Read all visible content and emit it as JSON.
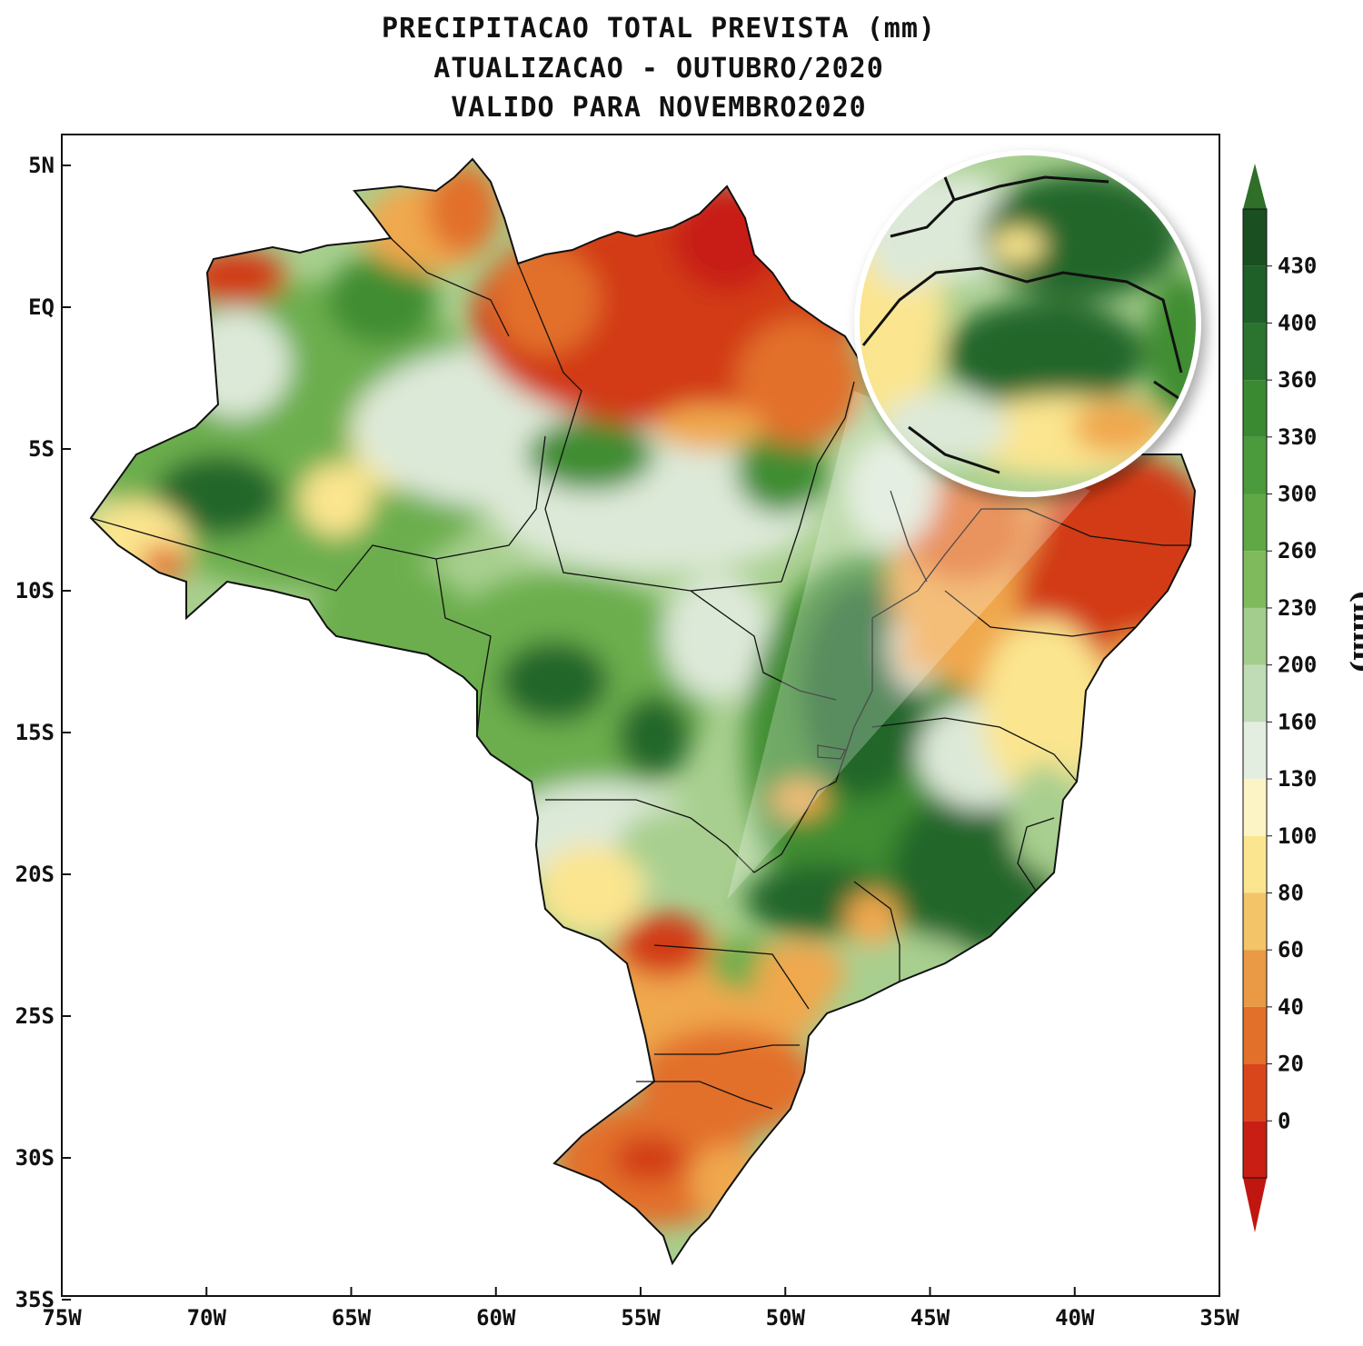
{
  "title": {
    "line1": "PRECIPITACAO TOTAL PREVISTA (mm)",
    "line2": "ATUALIZACAO - OUTUBRO/2020",
    "line3": "VALIDO PARA NOVEMBRO2020"
  },
  "axes": {
    "x_ticks": [
      "75W",
      "70W",
      "65W",
      "60W",
      "55W",
      "50W",
      "45W",
      "40W",
      "35W"
    ],
    "y_ticks": [
      "5N",
      "EQ",
      "5S",
      "10S",
      "15S",
      "20S",
      "25S",
      "30S",
      "35S"
    ]
  },
  "legend": {
    "unit": "(mm)",
    "values": [
      "0",
      "20",
      "40",
      "60",
      "80",
      "100",
      "130",
      "160",
      "200",
      "230",
      "260",
      "300",
      "330",
      "360",
      "400",
      "430"
    ],
    "colors": [
      "#c81e14",
      "#d9461c",
      "#e2702b",
      "#ea9a44",
      "#f3c468",
      "#fbe58f",
      "#fdf4c6",
      "#e3eee0",
      "#c0dcb6",
      "#a3cd8d",
      "#7fba5d",
      "#5fa845",
      "#4b9a3b",
      "#3a8a32",
      "#2a7430",
      "#1f5f28",
      "#1a4f22"
    ],
    "under_color": "#c0160f",
    "over_color": "#2f6f2a"
  },
  "map": {
    "region": "Brazil",
    "has_zoom_inset": true,
    "colors": {
      "dry": "#d23a18",
      "dry2": "#e2702b",
      "dry3": "#f0a84e",
      "pale": "#fbe58f",
      "neutral": "#dde9d8",
      "wet1": "#a8cf8f",
      "wet2": "#6cae4d",
      "wet3": "#3f8d33",
      "wet4": "#22662a"
    }
  }
}
